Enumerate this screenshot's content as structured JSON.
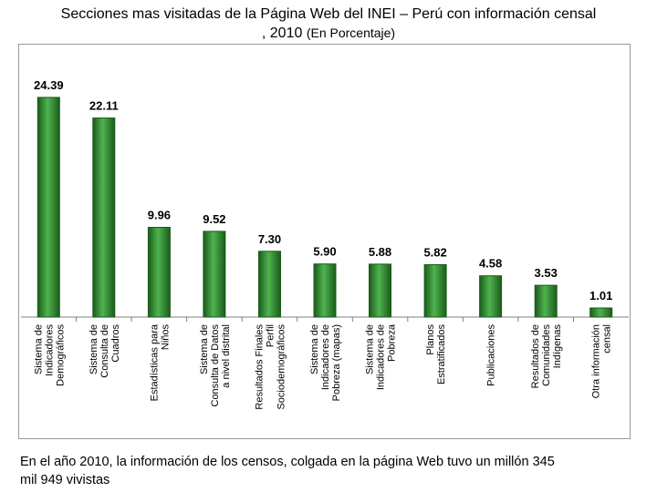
{
  "title": {
    "line1": "Secciones mas visitadas de la Página Web del INEI – Perú con información censal",
    "line2": ", 2010",
    "unit": "(En Porcentaje)"
  },
  "note": {
    "line1": "En el año 2010, la información de los censos, colgada en la página Web tuvo un millón 345",
    "line2": "mil 949 vivistas"
  },
  "colors": {
    "bar": "#2e8b2e",
    "bar_dark": "#1a5c1a",
    "bar_light": "#4fb34f"
  },
  "chart_data": {
    "type": "bar",
    "ylim": [
      0,
      26
    ],
    "grid": false,
    "legend": "none",
    "categories": [
      [
        "Sistema de",
        "Indicadores",
        "Demográficos"
      ],
      [
        "Sistema de",
        "Consulta de",
        "Cuadros"
      ],
      [
        "Estadísticas para",
        "Niños"
      ],
      [
        "Sistema de",
        "Consulta de Datos",
        "a nivel distrital"
      ],
      [
        "Resultados Finales",
        "Perfil",
        "Sociodemográficos"
      ],
      [
        "Sistema de",
        "Indicadores de",
        "Pobreza (mapas)"
      ],
      [
        "Sistema de",
        "Indicadores de",
        "Pobreza"
      ],
      [
        "Planos",
        "Estratificados"
      ],
      [
        "Publicaciones"
      ],
      [
        "Resultados de",
        "Comunidades",
        "Indígenas"
      ],
      [
        "Otra información",
        "censal"
      ]
    ],
    "values": [
      24.39,
      22.11,
      9.96,
      9.52,
      7.3,
      5.9,
      5.88,
      5.82,
      4.58,
      3.53,
      1.01
    ],
    "value_labels": [
      "24.39",
      "22.11",
      "9.96",
      "9.52",
      "7.30",
      "5.90",
      "5.88",
      "5.82",
      "4.58",
      "3.53",
      "1.01"
    ]
  }
}
